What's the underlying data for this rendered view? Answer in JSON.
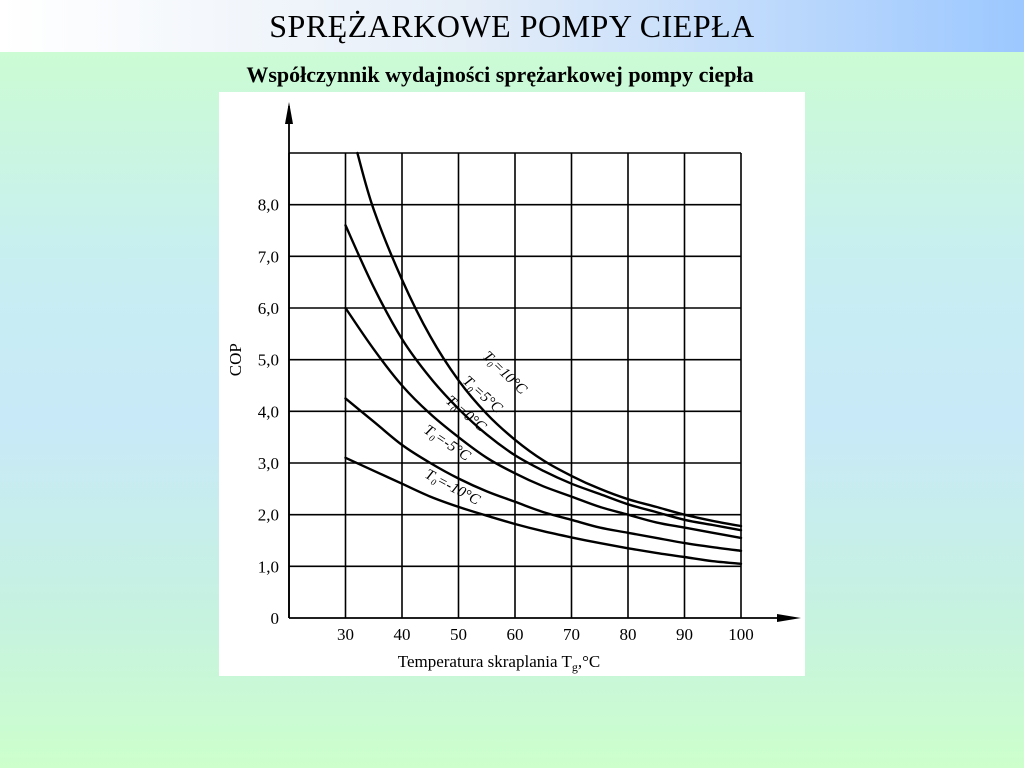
{
  "slide": {
    "title": "SPRĘŻARKOWE POMPY CIEPŁA",
    "subtitle": "Współczynnik wydajności sprężarkowej pompy ciepła"
  },
  "chart_data": {
    "type": "line",
    "title": "",
    "xlabel": "Temperatura skraplania T",
    "xlabel_sub": "g",
    "xlabel_unit": ",°C",
    "ylabel": "COP",
    "xlim": [
      20,
      100
    ],
    "ylim": [
      0,
      9
    ],
    "x_ticks": [
      30,
      40,
      50,
      60,
      70,
      80,
      90,
      100
    ],
    "x_tick_labels": [
      "30",
      "40",
      "50",
      "60",
      "70",
      "80",
      "90",
      "100"
    ],
    "y_ticks": [
      0,
      1,
      2,
      3,
      4,
      5,
      6,
      7,
      8
    ],
    "y_tick_labels": [
      "0",
      "1,0",
      "2,0",
      "3,0",
      "4,0",
      "5,0",
      "6,0",
      "7,0",
      "8,0"
    ],
    "grid": true,
    "series": [
      {
        "name": "T₀=10°C",
        "x": [
          32.1,
          35,
          40,
          45,
          50,
          55,
          60,
          65,
          70,
          75,
          80,
          85,
          90,
          95,
          100
        ],
        "values": [
          9.0,
          7.9,
          6.55,
          5.45,
          4.6,
          3.95,
          3.45,
          3.05,
          2.75,
          2.5,
          2.3,
          2.15,
          2.0,
          1.88,
          1.78
        ]
      },
      {
        "name": "T₀=5°C",
        "x": [
          30,
          35,
          40,
          45,
          50,
          55,
          60,
          65,
          70,
          75,
          80,
          85,
          90,
          95,
          100
        ],
        "values": [
          7.6,
          6.4,
          5.4,
          4.65,
          4.05,
          3.55,
          3.15,
          2.85,
          2.6,
          2.4,
          2.2,
          2.05,
          1.9,
          1.8,
          1.7
        ]
      },
      {
        "name": "T₀=0°C",
        "x": [
          30,
          35,
          40,
          45,
          50,
          55,
          60,
          65,
          70,
          75,
          80,
          85,
          90,
          95,
          100
        ],
        "values": [
          6.0,
          5.2,
          4.5,
          3.95,
          3.5,
          3.1,
          2.8,
          2.55,
          2.35,
          2.15,
          2.0,
          1.85,
          1.75,
          1.65,
          1.55
        ]
      },
      {
        "name": "T₀=-5°C",
        "x": [
          30,
          35,
          40,
          45,
          50,
          55,
          60,
          65,
          70,
          75,
          80,
          85,
          90,
          95,
          100
        ],
        "values": [
          4.25,
          3.8,
          3.35,
          3.0,
          2.7,
          2.45,
          2.25,
          2.05,
          1.9,
          1.75,
          1.65,
          1.55,
          1.45,
          1.37,
          1.3
        ]
      },
      {
        "name": "T₀=-10°C",
        "x": [
          30,
          35,
          40,
          45,
          50,
          55,
          60,
          65,
          70,
          75,
          80,
          85,
          90,
          95,
          100
        ],
        "values": [
          3.1,
          2.85,
          2.6,
          2.35,
          2.15,
          1.98,
          1.82,
          1.68,
          1.56,
          1.45,
          1.35,
          1.26,
          1.18,
          1.1,
          1.05
        ]
      }
    ],
    "series_label_text": [
      "T₀=10°C",
      "T₀=5°C",
      "T₀=0°C",
      "T₀=-5°C",
      "T₀=-10°C"
    ]
  }
}
